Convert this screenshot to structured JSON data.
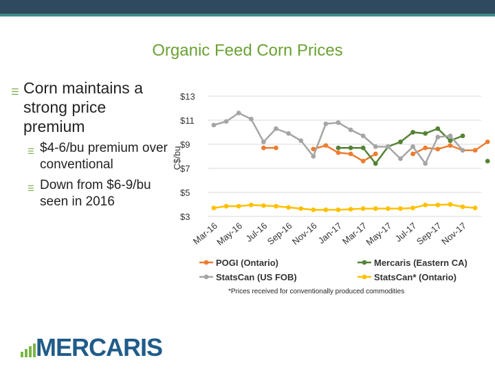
{
  "slide": {
    "title": "Organic Feed Corn Prices",
    "bullet_main": "Corn maintains a strong price premium",
    "sub_bullets": [
      "$4-6/bu premium over  conventional",
      "Down from $6-9/bu seen in 2016"
    ],
    "footnote": "*Prices received for conventionally produced commodities",
    "logo_text": "MERCARIS",
    "colors": {
      "title": "#6aa233",
      "bullet_icon": "#7aa94a",
      "topbar": "#2f4a5e",
      "logo_text": "#1f5c8a",
      "logo_bars": "#7ab648"
    }
  },
  "chart_data": {
    "type": "line",
    "ylabel": "C$/bu",
    "ylim": [
      3,
      13
    ],
    "yticks": [
      3,
      5,
      7,
      9,
      11,
      13
    ],
    "ytick_labels": [
      "$3",
      "$5",
      "$7",
      "$9",
      "$11",
      "$13"
    ],
    "x_tick_labels": [
      "Mar-16",
      "May-16",
      "Jul-16",
      "Sep-16",
      "Nov-16",
      "Jan-17",
      "Mar-17",
      "May-17",
      "Jul-17",
      "Sep-17",
      "Nov-17"
    ],
    "grid": "horizontal",
    "legend_position": "bottom",
    "series": [
      {
        "name": "POGI (Ontario)",
        "color": "#ed7d31",
        "values": [
          null,
          null,
          null,
          null,
          8.7,
          8.7,
          null,
          null,
          8.6,
          8.9,
          8.3,
          8.2,
          7.6,
          8.2,
          null,
          null,
          8.2,
          8.7,
          8.6,
          8.9,
          8.5,
          8.5,
          9.2
        ]
      },
      {
        "name": "Mercaris (Eastern CA)",
        "color": "#548235",
        "values": [
          null,
          null,
          null,
          null,
          null,
          null,
          null,
          null,
          null,
          null,
          8.7,
          8.7,
          8.7,
          7.4,
          8.8,
          9.2,
          10.0,
          9.9,
          10.3,
          9.3,
          9.7,
          null,
          7.6
        ]
      },
      {
        "name": "StatsCan (US FOB)",
        "color": "#a5a5a5",
        "values": [
          10.6,
          10.9,
          11.6,
          11.1,
          9.2,
          10.3,
          9.9,
          9.3,
          8.0,
          10.7,
          10.8,
          10.2,
          9.7,
          8.8,
          8.8,
          7.8,
          8.8,
          7.4,
          9.6,
          9.7,
          8.5,
          null,
          null
        ]
      },
      {
        "name": "StatsCan* (Ontario)",
        "color": "#ffc000",
        "values": [
          3.7,
          3.85,
          3.85,
          3.95,
          3.9,
          3.85,
          3.75,
          3.65,
          3.55,
          3.55,
          3.55,
          3.6,
          3.65,
          3.65,
          3.65,
          3.65,
          3.7,
          3.95,
          3.95,
          4.0,
          3.8,
          3.7,
          null
        ]
      }
    ]
  }
}
